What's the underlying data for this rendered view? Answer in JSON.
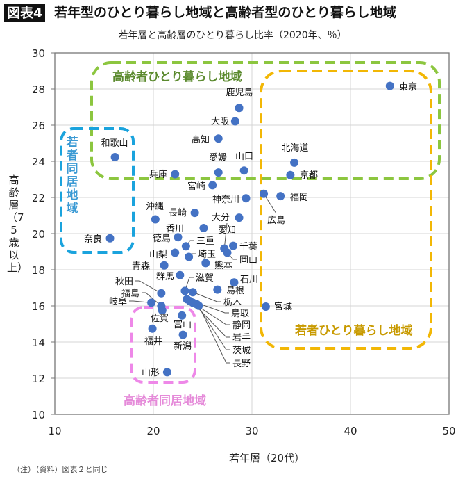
{
  "header": {
    "badge": "図表4",
    "title": "若年型のひとり暮らし地域と高齢者型のひとり暮らし地域"
  },
  "footnote": "（注）（資料）図表２と同じ",
  "chart_data": {
    "type": "scatter",
    "title": "若年層と高齢層のひとり暮らし比率（2020年、％）",
    "xlabel": "若年層（20代）",
    "ylabel": "高齢層（75歳以上）",
    "xlim": [
      10,
      50
    ],
    "ylim": [
      10,
      30
    ],
    "xticks": [
      "10",
      "20",
      "30",
      "40",
      "50"
    ],
    "yticks": [
      "10",
      "12",
      "14",
      "16",
      "18",
      "20",
      "22",
      "24",
      "26",
      "28",
      "30"
    ],
    "grid": true,
    "point_color": "#4472c4",
    "points": [
      {
        "name": "東京",
        "x": 44.0,
        "y": 28.17
      },
      {
        "name": "北海道",
        "x": 34.3,
        "y": 23.93
      },
      {
        "name": "京都",
        "x": 33.9,
        "y": 23.24
      },
      {
        "name": "広島",
        "x": 31.2,
        "y": 22.2
      },
      {
        "name": "福岡",
        "x": 32.9,
        "y": 22.07
      },
      {
        "name": "宮城",
        "x": 31.4,
        "y": 15.96
      },
      {
        "name": "鹿児島",
        "x": 28.7,
        "y": 26.95
      },
      {
        "name": "大阪",
        "x": 28.3,
        "y": 26.21
      },
      {
        "name": "高知",
        "x": 26.6,
        "y": 25.26
      },
      {
        "name": "和歌山",
        "x": 16.1,
        "y": 24.23
      },
      {
        "name": "兵庫",
        "x": 22.2,
        "y": 23.29
      },
      {
        "name": "愛媛",
        "x": 26.6,
        "y": 23.38
      },
      {
        "name": "山口",
        "x": 29.2,
        "y": 23.49
      },
      {
        "name": "宮崎",
        "x": 26.0,
        "y": 22.68
      },
      {
        "name": "神奈川",
        "x": 29.4,
        "y": 21.95
      },
      {
        "name": "沖縄",
        "x": 20.2,
        "y": 20.79
      },
      {
        "name": "長崎",
        "x": 24.2,
        "y": 21.15
      },
      {
        "name": "大分",
        "x": 28.7,
        "y": 20.88
      },
      {
        "name": "香川",
        "x": 25.1,
        "y": 20.31
      },
      {
        "name": "奈良",
        "x": 15.6,
        "y": 19.74
      },
      {
        "name": "徳島",
        "x": 22.5,
        "y": 19.8
      },
      {
        "name": "三重",
        "x": 23.3,
        "y": 19.3
      },
      {
        "name": "愛知",
        "x": 27.2,
        "y": 19.17
      },
      {
        "name": "千葉",
        "x": 28.1,
        "y": 19.32
      },
      {
        "name": "岡山",
        "x": 27.5,
        "y": 18.94
      },
      {
        "name": "山梨",
        "x": 22.2,
        "y": 18.94
      },
      {
        "name": "埼玉",
        "x": 23.6,
        "y": 18.71
      },
      {
        "name": "熊本",
        "x": 25.3,
        "y": 18.37
      },
      {
        "name": "青森",
        "x": 21.1,
        "y": 18.24
      },
      {
        "name": "群馬",
        "x": 22.7,
        "y": 17.7
      },
      {
        "name": "滋賀",
        "x": 23.2,
        "y": 16.83
      },
      {
        "name": "石川",
        "x": 28.2,
        "y": 17.3
      },
      {
        "name": "島根",
        "x": 26.5,
        "y": 16.9
      },
      {
        "name": "秋田",
        "x": 20.8,
        "y": 16.7
      },
      {
        "name": "福島",
        "x": 20.8,
        "y": 16.0
      },
      {
        "name": "岐阜",
        "x": 19.8,
        "y": 16.18
      },
      {
        "name": "栃木",
        "x": 24.0,
        "y": 16.76
      },
      {
        "name": "鳥取",
        "x": 23.4,
        "y": 16.37
      },
      {
        "name": "静岡",
        "x": 23.7,
        "y": 16.27
      },
      {
        "name": "岩手",
        "x": 24.0,
        "y": 16.18
      },
      {
        "name": "茨城",
        "x": 24.4,
        "y": 16.09
      },
      {
        "name": "長野",
        "x": 24.6,
        "y": 16.01
      },
      {
        "name": "佐賀",
        "x": 20.9,
        "y": 15.75
      },
      {
        "name": "富山",
        "x": 22.9,
        "y": 15.47
      },
      {
        "name": "福井",
        "x": 19.9,
        "y": 14.74
      },
      {
        "name": "新潟",
        "x": 23.0,
        "y": 14.4
      },
      {
        "name": "山形",
        "x": 21.4,
        "y": 12.33
      }
    ],
    "regions": [
      {
        "label": "高齢者ひとり暮らし地域",
        "color": "#8cc63f",
        "text_color": "#5b8a2e"
      },
      {
        "label": "若者同居地域",
        "color": "#1aa3dd",
        "text_color": "#3b9ad4"
      },
      {
        "label": "若者ひとり暮らし地域",
        "color": "#f2b705",
        "text_color": "#c89a00"
      },
      {
        "label": "高齢者同居地域",
        "color": "#ee88e8",
        "text_color": "#e58ad9"
      }
    ]
  }
}
